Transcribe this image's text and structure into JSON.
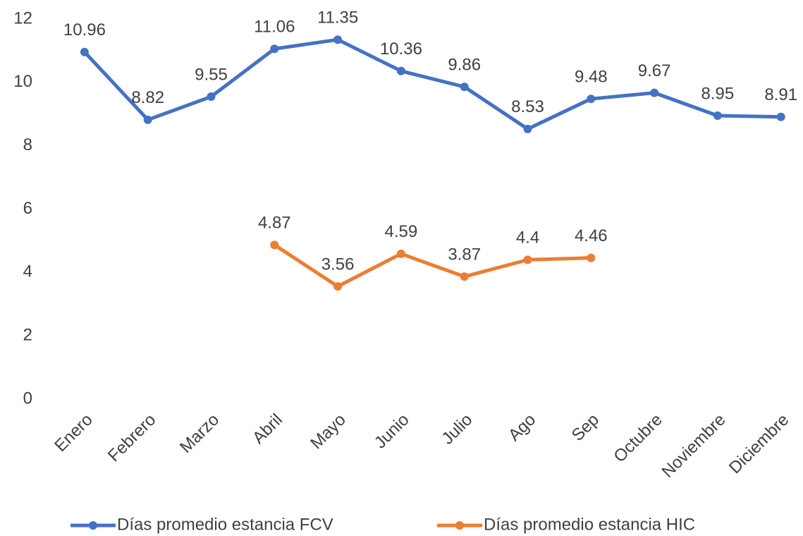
{
  "chart_data": {
    "type": "line",
    "categories": [
      "Enero",
      "Febrero",
      "Marzo",
      "Abril",
      "Mayo",
      "Junio",
      "Julio",
      "Ago",
      "Sep",
      "Octubre",
      "Noviembre",
      "Diciembre"
    ],
    "series": [
      {
        "name": "Días promedio estancia FCV",
        "color": "#4472c4",
        "values": [
          10.96,
          8.82,
          9.55,
          11.06,
          11.35,
          10.36,
          9.86,
          8.53,
          9.48,
          9.67,
          8.95,
          8.91
        ]
      },
      {
        "name": "Días promedio estancia HIC",
        "color": "#ed7d31",
        "values": [
          null,
          null,
          null,
          4.87,
          3.56,
          4.59,
          3.87,
          4.4,
          4.46,
          null,
          null,
          null
        ]
      }
    ],
    "ylim": [
      0,
      12
    ],
    "yticks": [
      0,
      2,
      4,
      6,
      8,
      10,
      12
    ],
    "grid": false,
    "legend": "bottom"
  }
}
